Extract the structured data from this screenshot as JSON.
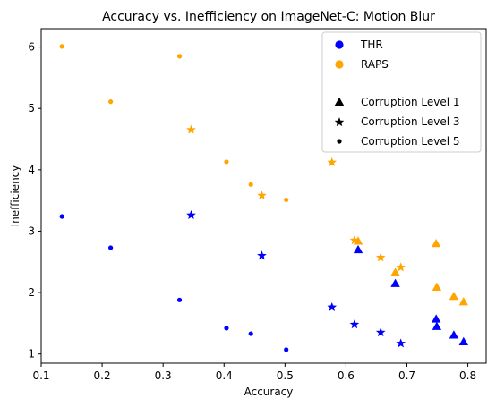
{
  "chart_data": {
    "type": "scatter",
    "title": "Accuracy vs. Inefficiency on ImageNet-C: Motion Blur",
    "xlabel": "Accuracy",
    "ylabel": "Inefficiency",
    "xlim": [
      0.1,
      0.83
    ],
    "ylim": [
      0.85,
      6.3
    ],
    "xticks": [
      "0.1",
      "0.2",
      "0.3",
      "0.4",
      "0.5",
      "0.6",
      "0.7",
      "0.8"
    ],
    "yticks": [
      "1",
      "2",
      "3",
      "4",
      "5",
      "6"
    ],
    "grid": false,
    "legend_position": "top-right",
    "colors": {
      "THR": "#0000ff",
      "RAPS": "#ffa500"
    },
    "legend": {
      "methods": [
        {
          "label": "THR",
          "color": "#0000ff"
        },
        {
          "label": "RAPS",
          "color": "#ffa500"
        }
      ],
      "levels": [
        {
          "label": "Corruption Level 1",
          "marker": "triangle"
        },
        {
          "label": "Corruption Level 3",
          "marker": "star"
        },
        {
          "label": "Corruption Level 5",
          "marker": "dot"
        }
      ]
    },
    "series": [
      {
        "method": "THR",
        "level": 5,
        "marker": "dot",
        "color": "#0000ff",
        "points": [
          [
            0.134,
            3.24
          ],
          [
            0.214,
            2.73
          ],
          [
            0.327,
            1.88
          ],
          [
            0.404,
            1.42
          ],
          [
            0.444,
            1.33
          ],
          [
            0.502,
            1.07
          ]
        ]
      },
      {
        "method": "THR",
        "level": 3,
        "marker": "star",
        "color": "#0000ff",
        "points": [
          [
            0.346,
            3.27
          ],
          [
            0.462,
            2.61
          ],
          [
            0.577,
            1.77
          ],
          [
            0.614,
            1.49
          ],
          [
            0.657,
            1.36
          ],
          [
            0.69,
            1.18
          ]
        ]
      },
      {
        "method": "THR",
        "level": 1,
        "marker": "triangle",
        "color": "#0000ff",
        "points": [
          [
            0.62,
            2.7
          ],
          [
            0.681,
            2.15
          ],
          [
            0.748,
            1.57
          ],
          [
            0.749,
            1.45
          ],
          [
            0.777,
            1.31
          ],
          [
            0.793,
            1.2
          ]
        ]
      },
      {
        "method": "RAPS",
        "level": 5,
        "marker": "dot",
        "color": "#ffa500",
        "points": [
          [
            0.134,
            6.01
          ],
          [
            0.214,
            5.11
          ],
          [
            0.327,
            5.85
          ],
          [
            0.404,
            4.13
          ],
          [
            0.444,
            3.76
          ],
          [
            0.502,
            3.51
          ]
        ]
      },
      {
        "method": "RAPS",
        "level": 3,
        "marker": "star",
        "color": "#ffa500",
        "points": [
          [
            0.346,
            4.66
          ],
          [
            0.462,
            3.59
          ],
          [
            0.577,
            4.13
          ],
          [
            0.614,
            2.86
          ],
          [
            0.657,
            2.58
          ],
          [
            0.69,
            2.42
          ]
        ]
      },
      {
        "method": "RAPS",
        "level": 1,
        "marker": "triangle",
        "color": "#ffa500",
        "points": [
          [
            0.62,
            2.84
          ],
          [
            0.681,
            2.33
          ],
          [
            0.748,
            2.8
          ],
          [
            0.749,
            2.09
          ],
          [
            0.777,
            1.94
          ],
          [
            0.793,
            1.85
          ]
        ]
      }
    ]
  }
}
